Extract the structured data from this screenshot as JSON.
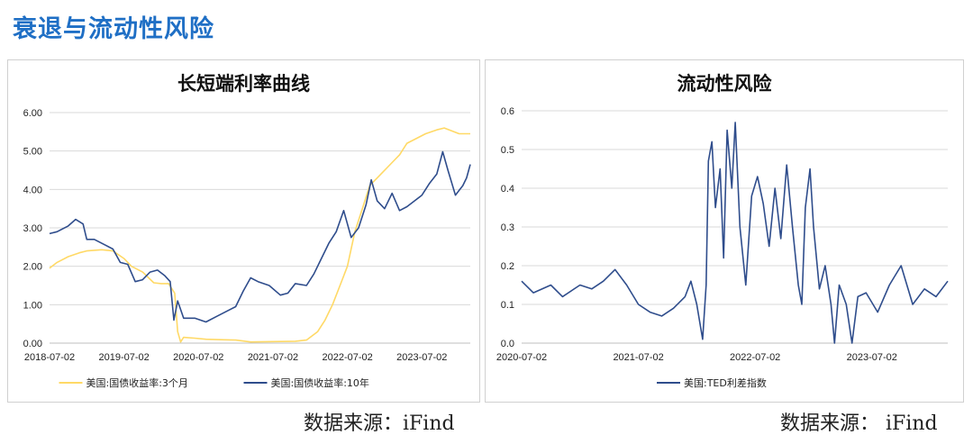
{
  "page": {
    "title": "衰退与流动性风险",
    "source_left": "数据来源：iFind",
    "source_right": "数据来源：  iFind"
  },
  "colors": {
    "yield_3m": "#ffd966",
    "yield_10y": "#2f4d8c",
    "ted": "#2f4d8c",
    "grid": "#d9d9d9",
    "axis_text": "#222222"
  },
  "chart_data": [
    {
      "type": "line",
      "title": "长短端利率曲线",
      "x_tick_labels": [
        "2018-07-02",
        "2019-07-02",
        "2020-07-02",
        "2021-07-02",
        "2022-07-02",
        "2023-07-02"
      ],
      "x_range": [
        2018.5,
        2024.15
      ],
      "y_tick_labels": [
        "0.00",
        "1.00",
        "2.00",
        "3.00",
        "4.00",
        "5.00",
        "6.00"
      ],
      "ylim": [
        0,
        6
      ],
      "grid": "horizontal",
      "legend": "bottom",
      "series": [
        {
          "name": "美国:国债收益率:3个月",
          "color_key": "yield_3m",
          "points": [
            [
              2018.5,
              1.95
            ],
            [
              2018.6,
              2.1
            ],
            [
              2018.75,
              2.25
            ],
            [
              2018.9,
              2.35
            ],
            [
              2019.0,
              2.4
            ],
            [
              2019.2,
              2.43
            ],
            [
              2019.35,
              2.4
            ],
            [
              2019.5,
              2.2
            ],
            [
              2019.6,
              2.0
            ],
            [
              2019.75,
              1.85
            ],
            [
              2019.9,
              1.57
            ],
            [
              2020.0,
              1.55
            ],
            [
              2020.1,
              1.55
            ],
            [
              2020.18,
              1.3
            ],
            [
              2020.22,
              0.3
            ],
            [
              2020.26,
              0.03
            ],
            [
              2020.3,
              0.15
            ],
            [
              2020.45,
              0.13
            ],
            [
              2020.6,
              0.1
            ],
            [
              2020.8,
              0.09
            ],
            [
              2021.0,
              0.08
            ],
            [
              2021.2,
              0.03
            ],
            [
              2021.5,
              0.04
            ],
            [
              2021.8,
              0.05
            ],
            [
              2021.95,
              0.08
            ],
            [
              2022.1,
              0.3
            ],
            [
              2022.2,
              0.6
            ],
            [
              2022.3,
              1.0
            ],
            [
              2022.4,
              1.5
            ],
            [
              2022.5,
              2.0
            ],
            [
              2022.6,
              2.9
            ],
            [
              2022.7,
              3.5
            ],
            [
              2022.8,
              4.1
            ],
            [
              2022.95,
              4.4
            ],
            [
              2023.1,
              4.7
            ],
            [
              2023.2,
              4.9
            ],
            [
              2023.3,
              5.2
            ],
            [
              2023.4,
              5.3
            ],
            [
              2023.55,
              5.45
            ],
            [
              2023.7,
              5.55
            ],
            [
              2023.8,
              5.6
            ],
            [
              2024.0,
              5.45
            ],
            [
              2024.15,
              5.45
            ]
          ]
        },
        {
          "name": "美国:国债收益率:10年",
          "color_key": "yield_10y",
          "points": [
            [
              2018.5,
              2.85
            ],
            [
              2018.6,
              2.9
            ],
            [
              2018.75,
              3.05
            ],
            [
              2018.85,
              3.22
            ],
            [
              2018.95,
              3.1
            ],
            [
              2019.0,
              2.7
            ],
            [
              2019.1,
              2.7
            ],
            [
              2019.25,
              2.55
            ],
            [
              2019.35,
              2.45
            ],
            [
              2019.45,
              2.1
            ],
            [
              2019.55,
              2.05
            ],
            [
              2019.65,
              1.6
            ],
            [
              2019.75,
              1.65
            ],
            [
              2019.85,
              1.85
            ],
            [
              2019.95,
              1.9
            ],
            [
              2020.05,
              1.75
            ],
            [
              2020.12,
              1.6
            ],
            [
              2020.17,
              0.6
            ],
            [
              2020.22,
              1.1
            ],
            [
              2020.3,
              0.65
            ],
            [
              2020.45,
              0.65
            ],
            [
              2020.6,
              0.55
            ],
            [
              2020.75,
              0.7
            ],
            [
              2020.9,
              0.85
            ],
            [
              2021.0,
              0.95
            ],
            [
              2021.1,
              1.35
            ],
            [
              2021.2,
              1.7
            ],
            [
              2021.3,
              1.6
            ],
            [
              2021.45,
              1.5
            ],
            [
              2021.6,
              1.25
            ],
            [
              2021.7,
              1.3
            ],
            [
              2021.8,
              1.55
            ],
            [
              2021.95,
              1.5
            ],
            [
              2022.05,
              1.8
            ],
            [
              2022.15,
              2.2
            ],
            [
              2022.25,
              2.6
            ],
            [
              2022.35,
              2.9
            ],
            [
              2022.45,
              3.45
            ],
            [
              2022.55,
              2.75
            ],
            [
              2022.65,
              3.0
            ],
            [
              2022.75,
              3.6
            ],
            [
              2022.82,
              4.25
            ],
            [
              2022.9,
              3.7
            ],
            [
              2023.0,
              3.5
            ],
            [
              2023.1,
              3.9
            ],
            [
              2023.2,
              3.45
            ],
            [
              2023.3,
              3.55
            ],
            [
              2023.4,
              3.7
            ],
            [
              2023.5,
              3.85
            ],
            [
              2023.6,
              4.15
            ],
            [
              2023.7,
              4.4
            ],
            [
              2023.78,
              4.98
            ],
            [
              2023.85,
              4.5
            ],
            [
              2023.95,
              3.85
            ],
            [
              2024.05,
              4.1
            ],
            [
              2024.1,
              4.3
            ],
            [
              2024.15,
              4.65
            ]
          ]
        }
      ]
    },
    {
      "type": "line",
      "title": "流动性风险",
      "x_tick_labels": [
        "2020-07-02",
        "2021-07-02",
        "2022-07-02",
        "2023-07-02"
      ],
      "x_range": [
        2020.5,
        2024.15
      ],
      "y_tick_labels": [
        "0.0",
        "0.1",
        "0.2",
        "0.3",
        "0.4",
        "0.5",
        "0.6"
      ],
      "ylim": [
        0,
        0.6
      ],
      "grid": "horizontal",
      "legend": "bottom",
      "series": [
        {
          "name": "美国:TED利差指数",
          "color_key": "ted",
          "points": [
            [
              2020.5,
              0.16
            ],
            [
              2020.6,
              0.13
            ],
            [
              2020.75,
              0.15
            ],
            [
              2020.85,
              0.12
            ],
            [
              2021.0,
              0.15
            ],
            [
              2021.1,
              0.14
            ],
            [
              2021.2,
              0.16
            ],
            [
              2021.3,
              0.19
            ],
            [
              2021.4,
              0.15
            ],
            [
              2021.5,
              0.1
            ],
            [
              2021.6,
              0.08
            ],
            [
              2021.7,
              0.07
            ],
            [
              2021.8,
              0.09
            ],
            [
              2021.9,
              0.12
            ],
            [
              2021.95,
              0.16
            ],
            [
              2022.0,
              0.1
            ],
            [
              2022.05,
              0.01
            ],
            [
              2022.08,
              0.15
            ],
            [
              2022.1,
              0.47
            ],
            [
              2022.13,
              0.52
            ],
            [
              2022.16,
              0.35
            ],
            [
              2022.2,
              0.45
            ],
            [
              2022.23,
              0.22
            ],
            [
              2022.26,
              0.55
            ],
            [
              2022.3,
              0.4
            ],
            [
              2022.33,
              0.57
            ],
            [
              2022.37,
              0.3
            ],
            [
              2022.42,
              0.15
            ],
            [
              2022.47,
              0.38
            ],
            [
              2022.52,
              0.43
            ],
            [
              2022.57,
              0.36
            ],
            [
              2022.62,
              0.25
            ],
            [
              2022.67,
              0.4
            ],
            [
              2022.72,
              0.27
            ],
            [
              2022.77,
              0.46
            ],
            [
              2022.82,
              0.3
            ],
            [
              2022.87,
              0.15
            ],
            [
              2022.9,
              0.1
            ],
            [
              2022.93,
              0.35
            ],
            [
              2022.97,
              0.45
            ],
            [
              2023.0,
              0.3
            ],
            [
              2023.05,
              0.14
            ],
            [
              2023.1,
              0.2
            ],
            [
              2023.15,
              0.1
            ],
            [
              2023.18,
              0.0
            ],
            [
              2023.22,
              0.15
            ],
            [
              2023.28,
              0.1
            ],
            [
              2023.33,
              0.0
            ],
            [
              2023.38,
              0.12
            ],
            [
              2023.45,
              0.13
            ],
            [
              2023.55,
              0.08
            ],
            [
              2023.65,
              0.15
            ],
            [
              2023.75,
              0.2
            ],
            [
              2023.85,
              0.1
            ],
            [
              2023.95,
              0.14
            ],
            [
              2024.05,
              0.12
            ],
            [
              2024.15,
              0.16
            ]
          ]
        }
      ]
    }
  ]
}
